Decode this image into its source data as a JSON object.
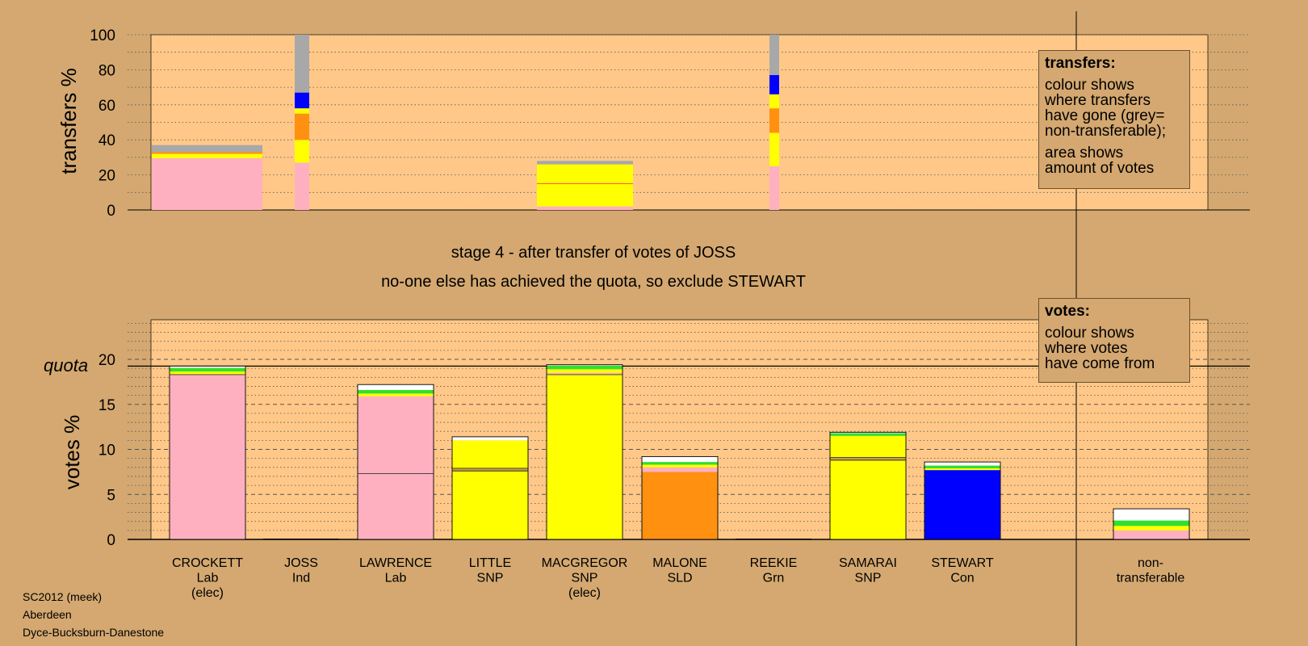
{
  "chart_data": [
    {
      "type": "bar",
      "stacked": true,
      "ylabel": "transfers %",
      "ylim": [
        0,
        100
      ],
      "yticks": [
        0,
        20,
        40,
        60,
        80,
        100
      ],
      "grid": "dotted",
      "legend": {
        "title": "transfers:",
        "lines": [
          "colour shows",
          "where transfers",
          "have gone (grey=",
          "non-transferable);",
          "",
          "area shows",
          "amount of votes"
        ]
      },
      "columns": [
        {
          "candidate": "CROCKETT",
          "segments": [
            {
              "party": "Lab",
              "color": "#ffb0c0",
              "value": 29.5
            },
            {
              "party": "SNP",
              "color": "#ffff00",
              "value": 2.5
            },
            {
              "party": "SLD",
              "color": "#ff9010",
              "value": 1.0
            },
            {
              "party": "non-transferable",
              "color": "#a8a8a8",
              "value": 4.0
            }
          ]
        },
        {
          "candidate": "JOSS",
          "segments": [
            {
              "party": "Lab",
              "color": "#ffb0c0",
              "value": 27
            },
            {
              "party": "SNP",
              "color": "#ffff00",
              "value": 13
            },
            {
              "party": "SLD",
              "color": "#ff9010",
              "value": 15
            },
            {
              "party": "Grn",
              "color": "#ffff00",
              "value": 3
            },
            {
              "party": "Con",
              "color": "#0000ff",
              "value": 9
            },
            {
              "party": "non-transferable",
              "color": "#a8a8a8",
              "value": 33
            }
          ]
        },
        {
          "candidate": "MACGREGOR",
          "segments": [
            {
              "party": "Lab",
              "color": "#ffb0c0",
              "value": 2
            },
            {
              "party": "SNP",
              "color": "#ffff00",
              "value": 13
            },
            {
              "party": "SNP",
              "color": "#ffff00",
              "value": 11
            },
            {
              "party": "non-transferable",
              "color": "#a8a8a8",
              "value": 2
            }
          ]
        },
        {
          "candidate": "REEKIE",
          "segments": [
            {
              "party": "Lab",
              "color": "#ffb0c0",
              "value": 25
            },
            {
              "party": "SNP",
              "color": "#ffff00",
              "value": 19
            },
            {
              "party": "SLD",
              "color": "#ff9010",
              "value": 14
            },
            {
              "party": "SNP",
              "color": "#ffff00",
              "value": 8
            },
            {
              "party": "Con",
              "color": "#0000ff",
              "value": 11
            },
            {
              "party": "non-transferable",
              "color": "#a8a8a8",
              "value": 23
            }
          ]
        }
      ]
    },
    {
      "type": "bar",
      "stacked": true,
      "ylabel": "votes %",
      "ylim": [
        0,
        20
      ],
      "yticks": [
        0,
        5,
        10,
        15,
        20
      ],
      "quota": 19.25,
      "quota_label": "quota",
      "legend": {
        "title": "votes:",
        "lines": [
          "colour shows",
          "where votes",
          "have come from"
        ]
      },
      "categories": [
        "CROCKETT",
        "JOSS",
        "LAWRENCE",
        "LITTLE",
        "MACGREGOR",
        "MALONE",
        "REEKIE",
        "SAMARAI",
        "STEWART",
        "non-transferable"
      ],
      "category_labels": [
        [
          "CROCKETT",
          "Lab",
          "(elec)"
        ],
        [
          "JOSS",
          "Ind"
        ],
        [
          "LAWRENCE",
          "Lab"
        ],
        [
          "LITTLE",
          "SNP"
        ],
        [
          "MACGREGOR",
          "SNP",
          "(elec)"
        ],
        [
          "MALONE",
          "SLD"
        ],
        [
          "REEKIE",
          "Grn"
        ],
        [
          "SAMARAI",
          "SNP"
        ],
        [
          "STEWART",
          "Con"
        ],
        [
          "non-",
          "transferable"
        ]
      ],
      "bars": [
        {
          "candidate": "CROCKETT",
          "segments": [
            {
              "color": "#ffb0c0",
              "value": 18.3
            },
            {
              "color": "#ffff00",
              "value": 0.35
            },
            {
              "color": "#30e030",
              "value": 0.4
            },
            {
              "color": "#ffffff",
              "value": 0.2
            }
          ]
        },
        {
          "candidate": "JOSS",
          "segments": []
        },
        {
          "candidate": "LAWRENCE",
          "segments": [
            {
              "color": "#ffb0c0",
              "value": 7.3
            },
            {
              "color": "#ffb0c0",
              "value": 8.6
            },
            {
              "color": "#ffff00",
              "value": 0.3
            },
            {
              "color": "#30e030",
              "value": 0.4
            },
            {
              "color": "#ffffff",
              "value": 0.6
            }
          ]
        },
        {
          "candidate": "LITTLE",
          "segments": [
            {
              "color": "#ffff00",
              "value": 7.6
            },
            {
              "color": "#c8a040",
              "value": 0.3
            },
            {
              "color": "#ffff00",
              "value": 3.1
            },
            {
              "color": "#ffffff",
              "value": 0.4
            }
          ]
        },
        {
          "candidate": "MACGREGOR",
          "segments": [
            {
              "color": "#ffff00",
              "value": 18.3
            },
            {
              "color": "#ffb0c0",
              "value": 0.2
            },
            {
              "color": "#ffff00",
              "value": 0.4
            },
            {
              "color": "#30e030",
              "value": 0.4
            },
            {
              "color": "#ffffff",
              "value": 0.1
            }
          ]
        },
        {
          "candidate": "MALONE",
          "segments": [
            {
              "color": "#ff9010",
              "value": 7.5
            },
            {
              "color": "#ffb0c0",
              "value": 0.5
            },
            {
              "color": "#ffff00",
              "value": 0.3
            },
            {
              "color": "#30e030",
              "value": 0.3
            },
            {
              "color": "#ffffff",
              "value": 0.6
            }
          ]
        },
        {
          "candidate": "REEKIE",
          "segments": []
        },
        {
          "candidate": "SAMARAI",
          "segments": [
            {
              "color": "#ffff00",
              "value": 8.8
            },
            {
              "color": "#c8a040",
              "value": 0.3
            },
            {
              "color": "#ffff00",
              "value": 2.4
            },
            {
              "color": "#30e030",
              "value": 0.3
            },
            {
              "color": "#ffffff",
              "value": 0.1
            }
          ]
        },
        {
          "candidate": "STEWART",
          "segments": [
            {
              "color": "#0000ff",
              "value": 7.7
            },
            {
              "color": "#ffff00",
              "value": 0.2
            },
            {
              "color": "#30e030",
              "value": 0.3
            },
            {
              "color": "#ffffff",
              "value": 0.4
            }
          ]
        },
        {
          "candidate": "non-transferable",
          "segments": [
            {
              "color": "#ffb0c0",
              "value": 1.0
            },
            {
              "color": "#ffff00",
              "value": 0.5
            },
            {
              "color": "#30e030",
              "value": 0.6
            },
            {
              "color": "#ffffff",
              "value": 1.3
            }
          ]
        }
      ]
    }
  ],
  "captions": {
    "stage": "stage 4 - after transfer of votes of JOSS",
    "action": "no-one else has achieved the quota, so exclude STEWART"
  },
  "footer": [
    "SC2012 (meek)",
    "Aberdeen",
    "Dyce-Bucksburn-Danestone"
  ]
}
